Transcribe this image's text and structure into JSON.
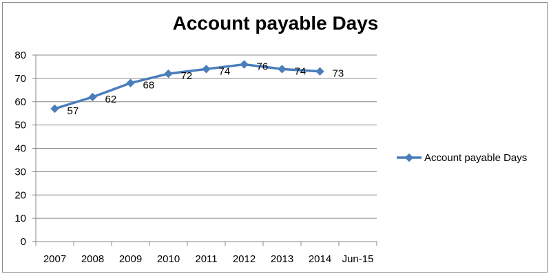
{
  "chart_data": {
    "type": "line",
    "title": "Account payable Days",
    "categories": [
      "2007",
      "2008",
      "2009",
      "2010",
      "2011",
      "2012",
      "2013",
      "2014",
      "Jun-15"
    ],
    "series": [
      {
        "name": "Account payable Days",
        "values": [
          57,
          62,
          68,
          72,
          74,
          76,
          74,
          73,
          null
        ],
        "data_labels": [
          "57",
          "62",
          "68",
          "72",
          "74",
          "76",
          "74",
          "73"
        ],
        "marker": "diamond",
        "color": "#4a7ebb"
      }
    ],
    "y_ticks": [
      "0",
      "10",
      "20",
      "30",
      "40",
      "50",
      "60",
      "70",
      "80"
    ],
    "ylim": [
      0,
      80
    ],
    "grid": true,
    "legend_position": "right"
  }
}
